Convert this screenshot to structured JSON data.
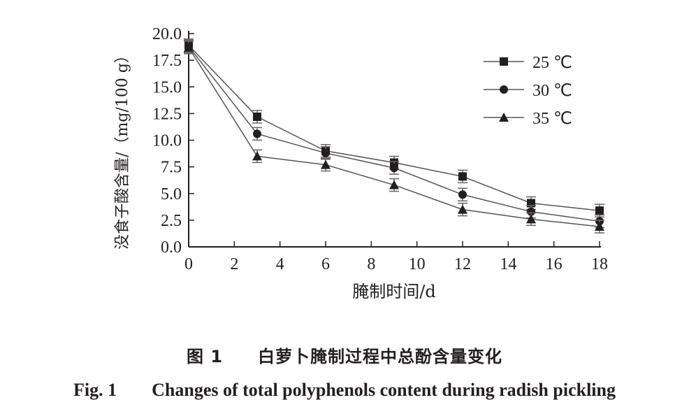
{
  "chart_data": {
    "type": "line",
    "title": "",
    "xlabel": "腌制时间/d",
    "ylabel": "没食子酸含量/（mg/100 g）",
    "x": [
      0,
      3,
      6,
      9,
      12,
      15,
      18
    ],
    "xlim": [
      0,
      18
    ],
    "ylim": [
      0,
      20
    ],
    "xticks": [
      "0",
      "2",
      "4",
      "6",
      "8",
      "10",
      "12",
      "14",
      "16",
      "18"
    ],
    "yticks": [
      "0.0",
      "2.5",
      "5.0",
      "7.5",
      "10.0",
      "12.5",
      "15.0",
      "17.5",
      "20.0"
    ],
    "grid": false,
    "legend_position": "top-right",
    "series": [
      {
        "name": "25 ℃",
        "marker": "square",
        "values": [
          18.9,
          12.2,
          9.0,
          7.9,
          6.6,
          4.1,
          3.4
        ]
      },
      {
        "name": "30 ℃",
        "marker": "circle",
        "values": [
          18.8,
          10.6,
          8.8,
          7.4,
          4.9,
          3.3,
          2.4
        ]
      },
      {
        "name": "35 ℃",
        "marker": "triangle",
        "values": [
          18.7,
          8.5,
          7.7,
          5.8,
          3.5,
          2.6,
          1.9
        ]
      }
    ]
  },
  "caption": {
    "cn_label": "图 1",
    "cn_text": "白萝卜腌制过程中总酚含量变化",
    "en_label": "Fig. 1",
    "en_text": "Changes of total polyphenols content during radish pickling"
  }
}
